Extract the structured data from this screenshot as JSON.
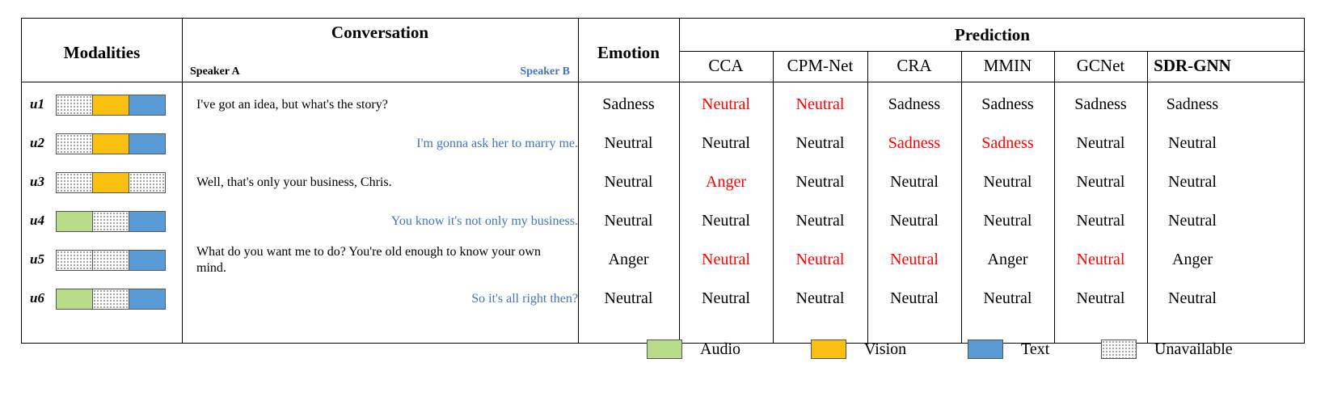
{
  "headers": {
    "modalities": "Modalities",
    "conversation": "Conversation",
    "speaker_a": "Speaker A",
    "speaker_b": "Speaker B",
    "emotion": "Emotion",
    "prediction": "Prediction"
  },
  "methods": [
    "CCA",
    "CPM-Net",
    "CRA",
    "MMIN",
    "GCNet",
    "SDR-GNN"
  ],
  "rows": [
    {
      "id": "u1",
      "modalities": [
        "unavailable",
        "vision",
        "text"
      ],
      "speaker": "A",
      "utterance": "I've got an idea, but what's the story?",
      "emotion": "Sadness",
      "predictions": [
        {
          "v": "Neutral",
          "wrong": true
        },
        {
          "v": "Neutral",
          "wrong": true
        },
        {
          "v": "Sadness",
          "wrong": false
        },
        {
          "v": "Sadness",
          "wrong": false
        },
        {
          "v": "Sadness",
          "wrong": false
        },
        {
          "v": "Sadness",
          "wrong": false
        }
      ]
    },
    {
      "id": "u2",
      "modalities": [
        "unavailable",
        "vision",
        "text"
      ],
      "speaker": "B",
      "utterance": "I'm gonna ask her to marry me.",
      "emotion": "Neutral",
      "predictions": [
        {
          "v": "Neutral",
          "wrong": false
        },
        {
          "v": "Neutral",
          "wrong": false
        },
        {
          "v": "Sadness",
          "wrong": true
        },
        {
          "v": "Sadness",
          "wrong": true
        },
        {
          "v": "Neutral",
          "wrong": false
        },
        {
          "v": "Neutral",
          "wrong": false
        }
      ]
    },
    {
      "id": "u3",
      "modalities": [
        "unavailable",
        "vision",
        "unavailable"
      ],
      "speaker": "A",
      "utterance": "Well, that's only your business, Chris.",
      "emotion": "Neutral",
      "predictions": [
        {
          "v": "Anger",
          "wrong": true
        },
        {
          "v": "Neutral",
          "wrong": false
        },
        {
          "v": "Neutral",
          "wrong": false
        },
        {
          "v": "Neutral",
          "wrong": false
        },
        {
          "v": "Neutral",
          "wrong": false
        },
        {
          "v": "Neutral",
          "wrong": false
        }
      ]
    },
    {
      "id": "u4",
      "modalities": [
        "audio",
        "unavailable",
        "text"
      ],
      "speaker": "B",
      "utterance": "You know it's not only my business.",
      "emotion": "Neutral",
      "predictions": [
        {
          "v": "Neutral",
          "wrong": false
        },
        {
          "v": "Neutral",
          "wrong": false
        },
        {
          "v": "Neutral",
          "wrong": false
        },
        {
          "v": "Neutral",
          "wrong": false
        },
        {
          "v": "Neutral",
          "wrong": false
        },
        {
          "v": "Neutral",
          "wrong": false
        }
      ]
    },
    {
      "id": "u5",
      "modalities": [
        "unavailable",
        "unavailable",
        "text"
      ],
      "speaker": "A",
      "utterance": "What do you want me to do?  You're old enough to know your own mind.",
      "emotion": "Anger",
      "predictions": [
        {
          "v": "Neutral",
          "wrong": true
        },
        {
          "v": "Neutral",
          "wrong": true
        },
        {
          "v": "Neutral",
          "wrong": true
        },
        {
          "v": "Anger",
          "wrong": false
        },
        {
          "v": "Neutral",
          "wrong": true
        },
        {
          "v": "Anger",
          "wrong": false
        }
      ]
    },
    {
      "id": "u6",
      "modalities": [
        "audio",
        "unavailable",
        "text"
      ],
      "speaker": "B",
      "utterance": "So it's all right then?",
      "emotion": "Neutral",
      "predictions": [
        {
          "v": "Neutral",
          "wrong": false
        },
        {
          "v": "Neutral",
          "wrong": false
        },
        {
          "v": "Neutral",
          "wrong": false
        },
        {
          "v": "Neutral",
          "wrong": false
        },
        {
          "v": "Neutral",
          "wrong": false
        },
        {
          "v": "Neutral",
          "wrong": false
        }
      ]
    }
  ],
  "legend": [
    {
      "key": "audio",
      "label": "Audio"
    },
    {
      "key": "vision",
      "label": "Vision"
    },
    {
      "key": "text",
      "label": "Text"
    },
    {
      "key": "unavailable",
      "label": "Unavailable"
    }
  ],
  "colors": {
    "audio": "#b9dc89",
    "vision": "#fbbf0f",
    "text": "#5b9bd5",
    "speaker_b_text": "#4472c4",
    "wrong_prediction": "#ff0000"
  }
}
